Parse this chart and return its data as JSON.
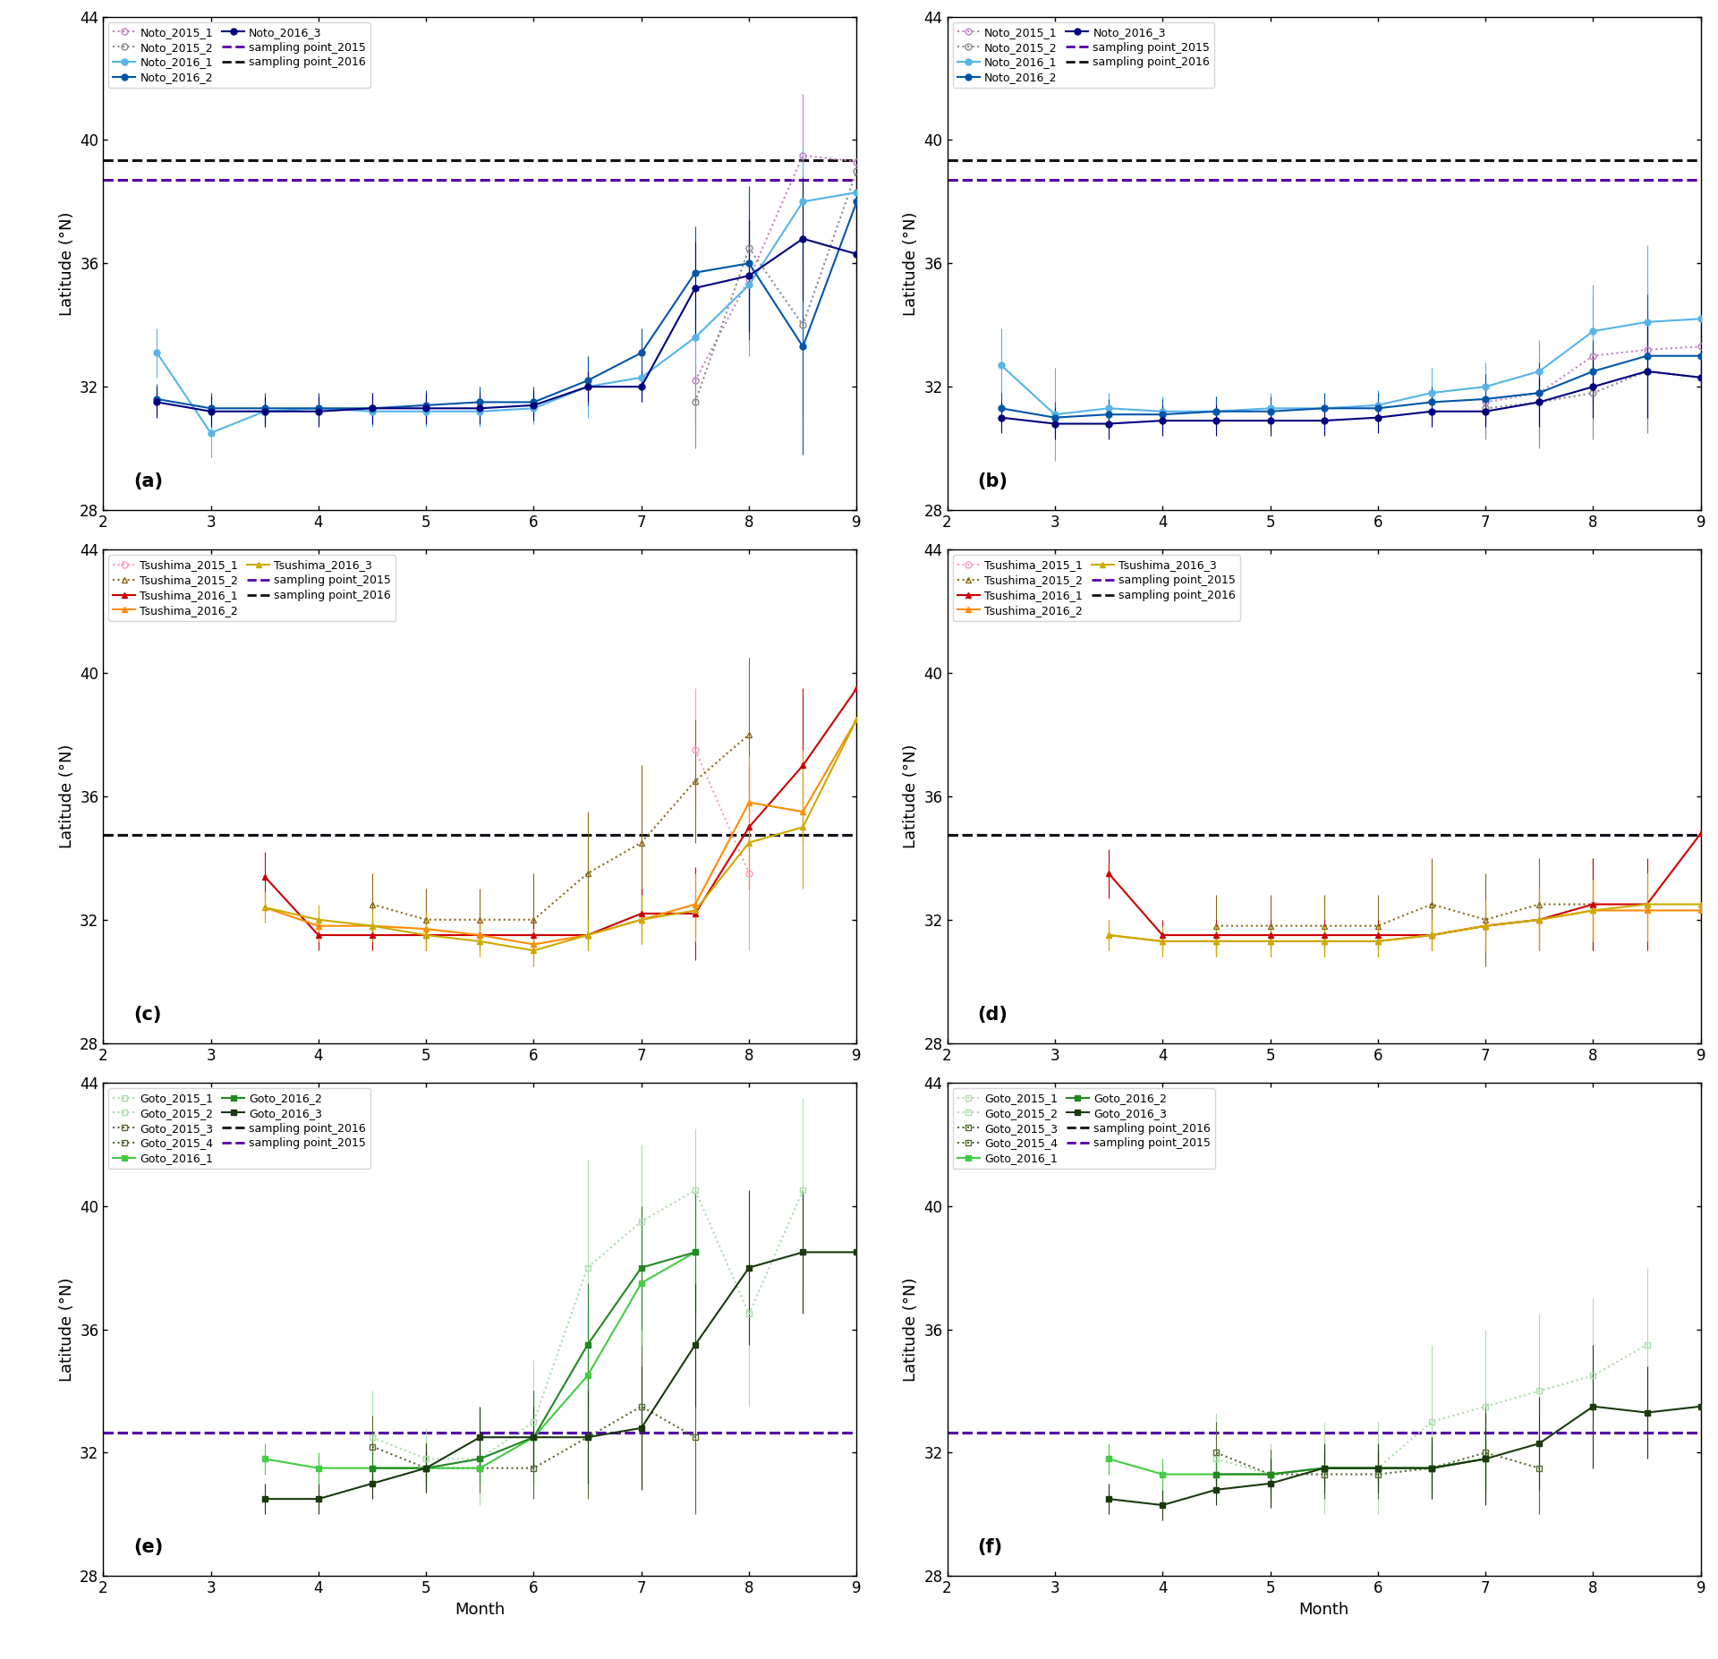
{
  "ylim": [
    28,
    44
  ],
  "xlim": [
    2,
    9
  ],
  "yticks": [
    28,
    32,
    36,
    40,
    44
  ],
  "xticks": [
    2,
    3,
    4,
    5,
    6,
    7,
    8,
    9
  ],
  "noto_sampling_2015": 38.7,
  "noto_sampling_2016": 39.35,
  "tsushima_sampling_2015": 34.75,
  "tsushima_sampling_2016": 34.75,
  "goto_sampling_2015": 32.65,
  "goto_sampling_2016": 32.65,
  "colors": {
    "noto_2015_1": "#c080c0",
    "noto_2015_2": "#888888",
    "noto_2016_1": "#56b4e9",
    "noto_2016_2": "#0055aa",
    "noto_2016_3": "#000080",
    "tsushima_2015_1": "#ff99bb",
    "tsushima_2015_2": "#8b6914",
    "tsushima_2016_1": "#cc0000",
    "tsushima_2016_2": "#ff8c00",
    "tsushima_2016_3": "#ccaa00",
    "goto_2015_1": "#aaddaa",
    "goto_2015_2": "#aaddaa",
    "goto_2015_3": "#556b2f",
    "goto_2015_4": "#556b2f",
    "goto_2016_1": "#44cc44",
    "goto_2016_2": "#228822",
    "goto_2016_3": "#1a3a0e",
    "purple_dashed": "#5500aa",
    "black_dashed": "#111111"
  }
}
